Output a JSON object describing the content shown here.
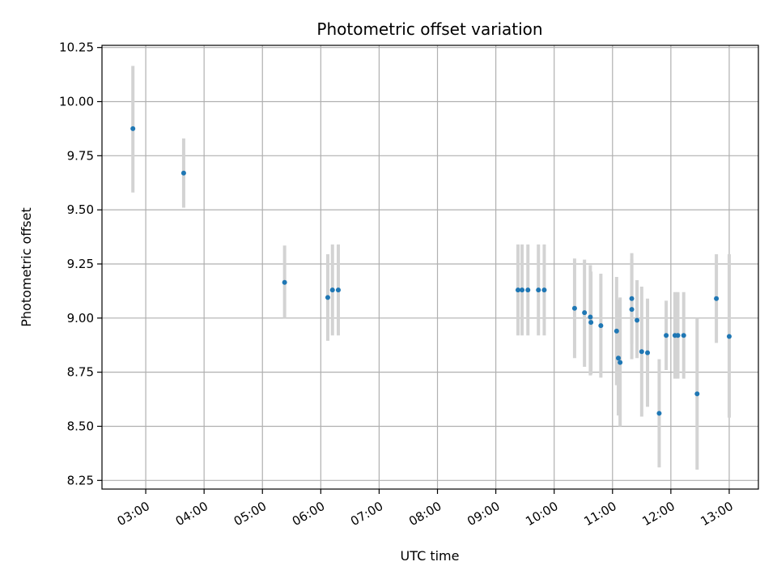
{
  "chart_data": {
    "type": "scatter",
    "title": "Photometric offset variation",
    "xlabel": "UTC time",
    "ylabel": "Photometric offset",
    "x_unit": "hours UTC",
    "xlim": [
      2.25,
      13.5
    ],
    "ylim": [
      8.21,
      10.26
    ],
    "grid": true,
    "x_ticks": [
      {
        "value": 3,
        "label": "03:00"
      },
      {
        "value": 4,
        "label": "04:00"
      },
      {
        "value": 5,
        "label": "05:00"
      },
      {
        "value": 6,
        "label": "06:00"
      },
      {
        "value": 7,
        "label": "07:00"
      },
      {
        "value": 8,
        "label": "08:00"
      },
      {
        "value": 9,
        "label": "09:00"
      },
      {
        "value": 10,
        "label": "10:00"
      },
      {
        "value": 11,
        "label": "11:00"
      },
      {
        "value": 12,
        "label": "12:00"
      },
      {
        "value": 13,
        "label": "13:00"
      }
    ],
    "y_ticks": [
      {
        "value": 8.25,
        "label": "8.25"
      },
      {
        "value": 8.5,
        "label": "8.50"
      },
      {
        "value": 8.75,
        "label": "8.75"
      },
      {
        "value": 9.0,
        "label": "9.00"
      },
      {
        "value": 9.25,
        "label": "9.25"
      },
      {
        "value": 9.5,
        "label": "9.50"
      },
      {
        "value": 9.75,
        "label": "9.75"
      },
      {
        "value": 10.0,
        "label": "10.00"
      },
      {
        "value": 10.25,
        "label": "10.25"
      }
    ],
    "colors": {
      "point": "#1f77b4",
      "errorbar": "#d3d3d3",
      "grid": "#b0b0b0"
    },
    "series": [
      {
        "points": [
          {
            "x": 2.78,
            "y": 9.875,
            "lo": 9.58,
            "hi": 10.165
          },
          {
            "x": 3.65,
            "y": 9.67,
            "lo": 9.51,
            "hi": 9.83
          },
          {
            "x": 5.38,
            "y": 9.165,
            "lo": 9.0,
            "hi": 9.335
          },
          {
            "x": 6.12,
            "y": 9.095,
            "lo": 8.895,
            "hi": 9.295
          },
          {
            "x": 6.2,
            "y": 9.13,
            "lo": 8.92,
            "hi": 9.34
          },
          {
            "x": 6.3,
            "y": 9.13,
            "lo": 8.92,
            "hi": 9.34
          },
          {
            "x": 9.38,
            "y": 9.13,
            "lo": 8.92,
            "hi": 9.34
          },
          {
            "x": 9.45,
            "y": 9.13,
            "lo": 8.92,
            "hi": 9.34
          },
          {
            "x": 9.55,
            "y": 9.13,
            "lo": 8.92,
            "hi": 9.34
          },
          {
            "x": 9.73,
            "y": 9.13,
            "lo": 8.92,
            "hi": 9.34
          },
          {
            "x": 9.83,
            "y": 9.13,
            "lo": 8.92,
            "hi": 9.34
          },
          {
            "x": 10.35,
            "y": 9.045,
            "lo": 8.815,
            "hi": 9.275
          },
          {
            "x": 10.52,
            "y": 9.025,
            "lo": 8.775,
            "hi": 9.27
          },
          {
            "x": 10.62,
            "y": 9.005,
            "lo": 8.735,
            "hi": 9.245
          },
          {
            "x": 10.63,
            "y": 8.98,
            "lo": 8.74,
            "hi": 9.215
          },
          {
            "x": 10.8,
            "y": 8.965,
            "lo": 8.725,
            "hi": 9.205
          },
          {
            "x": 11.07,
            "y": 8.94,
            "lo": 8.69,
            "hi": 9.19
          },
          {
            "x": 11.1,
            "y": 8.815,
            "lo": 8.55,
            "hi": 9.085
          },
          {
            "x": 11.13,
            "y": 8.795,
            "lo": 8.5,
            "hi": 9.095
          },
          {
            "x": 11.33,
            "y": 9.09,
            "lo": 8.88,
            "hi": 9.3
          },
          {
            "x": 11.33,
            "y": 9.04,
            "lo": 8.81,
            "hi": 9.27
          },
          {
            "x": 11.42,
            "y": 8.99,
            "lo": 8.815,
            "hi": 9.175
          },
          {
            "x": 11.5,
            "y": 8.845,
            "lo": 8.545,
            "hi": 9.145
          },
          {
            "x": 11.6,
            "y": 8.84,
            "lo": 8.59,
            "hi": 9.09
          },
          {
            "x": 11.8,
            "y": 8.56,
            "lo": 8.31,
            "hi": 8.81
          },
          {
            "x": 11.92,
            "y": 8.92,
            "lo": 8.76,
            "hi": 9.08
          },
          {
            "x": 12.07,
            "y": 8.92,
            "lo": 8.72,
            "hi": 9.12
          },
          {
            "x": 12.12,
            "y": 8.92,
            "lo": 8.72,
            "hi": 9.12
          },
          {
            "x": 12.22,
            "y": 8.92,
            "lo": 8.72,
            "hi": 9.12
          },
          {
            "x": 12.45,
            "y": 8.65,
            "lo": 8.3,
            "hi": 9.0
          },
          {
            "x": 12.78,
            "y": 9.09,
            "lo": 8.885,
            "hi": 9.295
          },
          {
            "x": 13.0,
            "y": 8.915,
            "lo": 8.54,
            "hi": 9.295
          }
        ]
      }
    ]
  }
}
